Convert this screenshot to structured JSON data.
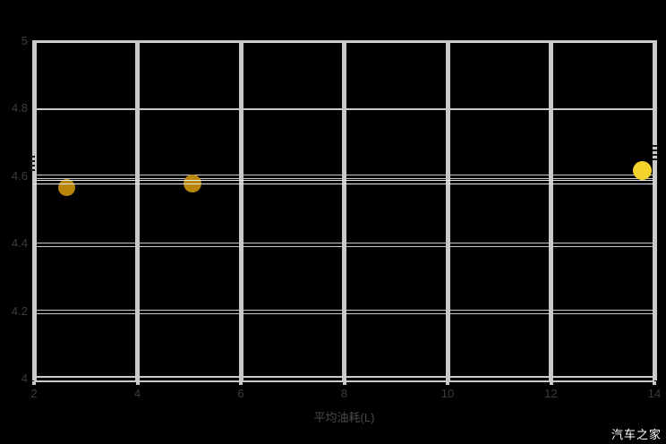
{
  "watermark": {
    "text": "汽车之家",
    "color": "#ffffff"
  },
  "chart_data": {
    "type": "scatter",
    "title": "",
    "xlabel": "平均油耗(L)",
    "ylabel": "",
    "xlim": [
      2,
      14
    ],
    "ylim": [
      4,
      5
    ],
    "xticks": [
      2,
      4,
      6,
      8,
      10,
      12,
      14
    ],
    "yticks": [
      {
        "v": 4,
        "line": "none"
      },
      {
        "v": 4.2,
        "line": "double"
      },
      {
        "v": 4.4,
        "line": "double"
      },
      {
        "v": 4.6,
        "line": "double"
      },
      {
        "v": 4.8,
        "line": "single"
      },
      {
        "v": 5,
        "line": "none"
      }
    ],
    "grid": true,
    "legend": false,
    "points": [
      {
        "x": 2.64,
        "y": 4.57,
        "color": "#b8860b",
        "diameter": 19
      },
      {
        "x": 5.07,
        "y": 4.58,
        "color": "#b8860b",
        "diameter": 20
      },
      {
        "x": 13.76,
        "y": 4.62,
        "color": "#f6d42e",
        "diameter": 21
      }
    ],
    "extra_hlines": [
      4.591,
      4.581
    ],
    "axis_marks": [
      {
        "side": "left",
        "y": 4.64
      },
      {
        "side": "right",
        "y": 4.67
      }
    ],
    "colors": {
      "background": "#000000",
      "plot_bg": "#000000",
      "grid": "#c9c9c9",
      "frame": "#cbcbcb",
      "thin_line": "#e8e8e8",
      "tick_label": "#3d3d3d",
      "axis_title": "#4a4a4a",
      "smudge": "#1c1c1c"
    }
  }
}
